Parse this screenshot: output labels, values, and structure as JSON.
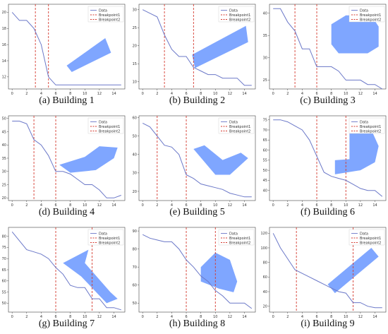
{
  "chart_data": [
    {
      "type": "line",
      "caption": "(a) Building 1",
      "x": [
        0,
        1,
        2,
        3,
        4,
        5,
        6,
        7,
        8,
        9,
        10,
        11,
        12,
        13,
        14,
        15
      ],
      "series": [
        {
          "name": "Data",
          "values": [
            20,
            19,
            19,
            18,
            16,
            12,
            11,
            11,
            11,
            11,
            11,
            11,
            11,
            11,
            11,
            11
          ]
        }
      ],
      "breakpoints": [
        {
          "name": "Breakpoint1",
          "x": 3.2
        },
        {
          "name": "Breakpoint2",
          "x": 5.0
        }
      ],
      "xticks": [
        0,
        2,
        4,
        6,
        8,
        10,
        12,
        14
      ],
      "yticks": [
        12,
        14,
        16,
        18,
        20
      ],
      "xlim": [
        -0.5,
        15.5
      ],
      "ylim": [
        10.5,
        21
      ],
      "building_color": "#7fa6ff",
      "building_polygon": [
        [
          7.5,
          13.4
        ],
        [
          12.8,
          16.8
        ],
        [
          13.6,
          15.0
        ],
        [
          8.2,
          12.6
        ]
      ]
    },
    {
      "type": "line",
      "caption": "(b) Building 2",
      "x": [
        0,
        1,
        2,
        3,
        4,
        5,
        6,
        7,
        8,
        9,
        10,
        11,
        12,
        13,
        14,
        15
      ],
      "series": [
        {
          "name": "Data",
          "values": [
            30,
            29,
            28,
            23,
            19,
            17,
            17,
            14,
            13,
            12,
            12,
            11,
            11,
            11,
            9,
            9
          ]
        }
      ],
      "breakpoints": [
        {
          "name": "Breakpoint1",
          "x": 3.0
        },
        {
          "name": "Breakpoint2",
          "x": 7.0
        }
      ],
      "xticks": [
        0,
        2,
        4,
        6,
        8,
        10,
        12,
        14
      ],
      "yticks": [
        10,
        15,
        20,
        25,
        30
      ],
      "xlim": [
        -0.5,
        15.5
      ],
      "ylim": [
        8,
        31.5
      ],
      "building_color": "#7fa6ff",
      "building_polygon": [
        [
          6.8,
          17.5
        ],
        [
          14.2,
          25.5
        ],
        [
          14.5,
          21.0
        ],
        [
          7.2,
          13.8
        ]
      ]
    },
    {
      "type": "line",
      "caption": "(c) Building 3",
      "x": [
        0,
        1,
        2,
        3,
        4,
        5,
        6,
        7,
        8,
        9,
        10,
        11,
        12,
        13,
        14,
        15
      ],
      "series": [
        {
          "name": "Data",
          "values": [
            41,
            41,
            38,
            36,
            32,
            32,
            28,
            28,
            28,
            27,
            25,
            25,
            25,
            24,
            24,
            23
          ]
        }
      ],
      "breakpoints": [
        {
          "name": "Breakpoint1",
          "x": 3.0
        },
        {
          "name": "Breakpoint2",
          "x": 6.0
        }
      ],
      "xticks": [
        0,
        2,
        4,
        6,
        8,
        10,
        12,
        14
      ],
      "yticks": [
        25,
        30,
        35,
        40
      ],
      "xlim": [
        -0.5,
        15.5
      ],
      "ylim": [
        23,
        42
      ],
      "building_color": "#7fa6ff",
      "building_polygon": [
        [
          8.0,
          37.5
        ],
        [
          10.0,
          39.5
        ],
        [
          13.5,
          39.5
        ],
        [
          14.5,
          37.0
        ],
        [
          14.5,
          32.5
        ],
        [
          13.0,
          31.0
        ],
        [
          9.0,
          31.0
        ],
        [
          8.0,
          33.0
        ]
      ]
    },
    {
      "type": "line",
      "caption": "(d) Building 4",
      "x": [
        0,
        1,
        2,
        3,
        4,
        5,
        6,
        7,
        8,
        9,
        10,
        11,
        12,
        13,
        14,
        15
      ],
      "series": [
        {
          "name": "Data",
          "values": [
            49,
            49,
            48,
            42,
            40,
            36,
            30,
            30,
            29,
            27,
            25,
            25,
            23,
            20,
            20,
            21
          ]
        }
      ],
      "breakpoints": [
        {
          "name": "Breakpoint1",
          "x": 3.0
        },
        {
          "name": "Breakpoint2",
          "x": 6.0
        }
      ],
      "xticks": [
        0,
        2,
        4,
        6,
        8,
        10,
        12,
        14
      ],
      "yticks": [
        20,
        25,
        30,
        35,
        40,
        45,
        50
      ],
      "xlim": [
        -0.5,
        15.5
      ],
      "ylim": [
        19,
        51
      ],
      "building_color": "#7fa6ff",
      "building_polygon": [
        [
          6.5,
          32.5
        ],
        [
          10.0,
          35.5
        ],
        [
          12.0,
          39.5
        ],
        [
          14.5,
          39.0
        ],
        [
          14.0,
          35.0
        ],
        [
          11.5,
          30.5
        ],
        [
          8.0,
          29.5
        ]
      ]
    },
    {
      "type": "line",
      "caption": "(e) Building 5",
      "x": [
        0,
        1,
        2,
        3,
        4,
        5,
        6,
        7,
        8,
        9,
        10,
        11,
        12,
        13,
        14,
        15
      ],
      "series": [
        {
          "name": "Data",
          "values": [
            57,
            55,
            50,
            45,
            44,
            40,
            29,
            27,
            24,
            23,
            22,
            21,
            19,
            18,
            17,
            17
          ]
        }
      ],
      "breakpoints": [
        {
          "name": "Breakpoint1",
          "x": 2.0
        },
        {
          "name": "Breakpoint2",
          "x": 6.0
        }
      ],
      "xticks": [
        0,
        2,
        4,
        6,
        8,
        10,
        12,
        14
      ],
      "yticks": [
        20,
        30,
        40,
        50,
        60
      ],
      "xlim": [
        -0.5,
        15.5
      ],
      "ylim": [
        15,
        61
      ],
      "building_color": "#7fa6ff",
      "building_polygon": [
        [
          7.0,
          43.0
        ],
        [
          8.5,
          45.0
        ],
        [
          11.0,
          37.0
        ],
        [
          13.5,
          41.0
        ],
        [
          14.5,
          38.0
        ],
        [
          12.0,
          29.0
        ],
        [
          10.0,
          29.0
        ]
      ]
    },
    {
      "type": "line",
      "caption": "(f) Building 6",
      "x": [
        0,
        1,
        2,
        3,
        4,
        5,
        6,
        7,
        8,
        9,
        10,
        11,
        12,
        13,
        14,
        15
      ],
      "series": [
        {
          "name": "Data",
          "values": [
            75,
            75,
            74,
            72,
            70,
            65,
            57,
            49,
            47,
            46,
            45,
            43,
            41,
            40,
            40,
            37
          ]
        }
      ],
      "breakpoints": [
        {
          "name": "Breakpoint1",
          "x": 6.0
        },
        {
          "name": "Breakpoint2",
          "x": 10.0
        }
      ],
      "xticks": [
        0,
        2,
        4,
        6,
        8,
        10,
        12,
        14
      ],
      "yticks": [
        40,
        45,
        50,
        55,
        60,
        65,
        70,
        75
      ],
      "xlim": [
        -0.5,
        15.5
      ],
      "ylim": [
        35,
        77
      ],
      "building_color": "#7fa6ff",
      "building_polygon": [
        [
          8.5,
          55.0
        ],
        [
          10.5,
          55.5
        ],
        [
          10.5,
          72.0
        ],
        [
          13.5,
          70.0
        ],
        [
          14.5,
          62.0
        ],
        [
          14.0,
          54.0
        ],
        [
          12.0,
          50.0
        ],
        [
          8.5,
          48.0
        ]
      ]
    },
    {
      "type": "line",
      "caption": "(g) Building 7",
      "x": [
        0,
        1,
        2,
        3,
        4,
        5,
        6,
        7,
        8,
        9,
        10,
        11,
        12,
        13,
        14,
        15
      ],
      "series": [
        {
          "name": "Data",
          "values": [
            82,
            78,
            74,
            73,
            72,
            70,
            66,
            63,
            58,
            57,
            57,
            52,
            52,
            48,
            48,
            47
          ]
        }
      ],
      "breakpoints": [
        {
          "name": "Breakpoint1",
          "x": 6.0
        },
        {
          "name": "Breakpoint2",
          "x": 11.0
        }
      ],
      "xticks": [
        0,
        2,
        4,
        6,
        8,
        10,
        12,
        14
      ],
      "yticks": [
        50,
        55,
        60,
        65,
        70,
        75,
        80
      ],
      "xlim": [
        -0.5,
        15.5
      ],
      "ylim": [
        46,
        84
      ],
      "building_color": "#7fa6ff",
      "building_polygon": [
        [
          7.0,
          68.0
        ],
        [
          10.5,
          74.0
        ],
        [
          10.0,
          68.0
        ],
        [
          13.5,
          55.0
        ],
        [
          14.5,
          52.0
        ],
        [
          13.0,
          50.0
        ],
        [
          9.5,
          62.0
        ]
      ]
    },
    {
      "type": "line",
      "caption": "(h) Building 8",
      "x": [
        0,
        1,
        2,
        3,
        4,
        5,
        6,
        7,
        8,
        9,
        10,
        11,
        12,
        13,
        14,
        15
      ],
      "series": [
        {
          "name": "Data",
          "values": [
            88,
            86,
            85,
            84,
            84,
            80,
            74,
            70,
            65,
            62,
            57,
            54,
            50,
            50,
            50,
            47
          ]
        }
      ],
      "breakpoints": [
        {
          "name": "Breakpoint1",
          "x": 6.0
        },
        {
          "name": "Breakpoint2",
          "x": 10.0
        }
      ],
      "xticks": [
        0,
        2,
        4,
        6,
        8,
        10,
        12,
        14
      ],
      "yticks": [
        50,
        60,
        70,
        80,
        90
      ],
      "xlim": [
        -0.5,
        15.5
      ],
      "ylim": [
        45,
        92
      ],
      "building_color": "#7fa6ff",
      "building_polygon": [
        [
          8.0,
          70.0
        ],
        [
          10.0,
          78.0
        ],
        [
          12.0,
          74.0
        ],
        [
          13.0,
          62.0
        ],
        [
          12.5,
          56.0
        ],
        [
          10.5,
          58.0
        ],
        [
          8.0,
          62.0
        ]
      ]
    },
    {
      "type": "line",
      "caption": "(i) Building 9",
      "x": [
        0,
        1,
        2,
        3,
        4,
        5,
        6,
        7,
        8,
        9,
        10,
        11,
        12,
        13,
        14,
        15
      ],
      "series": [
        {
          "name": "Data",
          "values": [
            120,
            100,
            85,
            70,
            65,
            60,
            55,
            50,
            45,
            40,
            38,
            25,
            25,
            20,
            18,
            18
          ]
        }
      ],
      "breakpoints": [
        {
          "name": "Breakpoint1",
          "x": 3.2
        },
        {
          "name": "Breakpoint2",
          "x": 11.0
        }
      ],
      "xticks": [
        0,
        2,
        4,
        6,
        8,
        10,
        12,
        14
      ],
      "yticks": [
        20,
        40,
        60,
        80,
        100,
        120
      ],
      "xlim": [
        -0.5,
        15.5
      ],
      "ylim": [
        12,
        128
      ],
      "building_color": "#7fa6ff",
      "building_polygon": [
        [
          7.5,
          50.0
        ],
        [
          13.5,
          100.0
        ],
        [
          14.5,
          88.0
        ],
        [
          8.5,
          38.0
        ]
      ]
    }
  ]
}
